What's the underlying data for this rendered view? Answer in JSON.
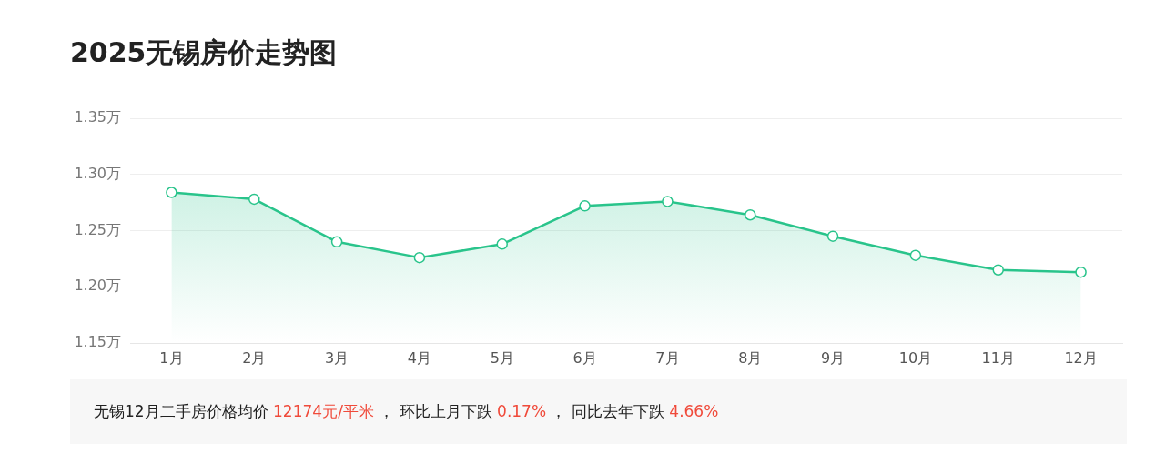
{
  "chart_data": {
    "type": "area",
    "title": "2025无锡房价走势图",
    "categories": [
      "1月",
      "2月",
      "3月",
      "4月",
      "5月",
      "6月",
      "7月",
      "8月",
      "9月",
      "10月",
      "11月",
      "12月"
    ],
    "series": [
      {
        "color": "#29c48b",
        "values": [
          1.284,
          1.278,
          1.24,
          1.226,
          1.238,
          1.272,
          1.276,
          1.264,
          1.245,
          1.228,
          1.215,
          1.213
        ]
      }
    ],
    "ylim": [
      1.15,
      1.35
    ],
    "yticks": [
      {
        "value": 1.15,
        "label": "1.15万"
      },
      {
        "value": 1.2,
        "label": "1.20万"
      },
      {
        "value": 1.25,
        "label": "1.25万"
      },
      {
        "value": 1.3,
        "label": "1.30万"
      },
      {
        "value": 1.35,
        "label": "1.35万"
      }
    ],
    "grid": "y",
    "marker": "circle",
    "annotations": [
      "无锡12月二手房价格均价 ",
      "12174元/平米",
      " ， 环比上月下跌 ",
      "0.17%",
      " ， 同比去年下跌 ",
      "4.66%"
    ]
  }
}
